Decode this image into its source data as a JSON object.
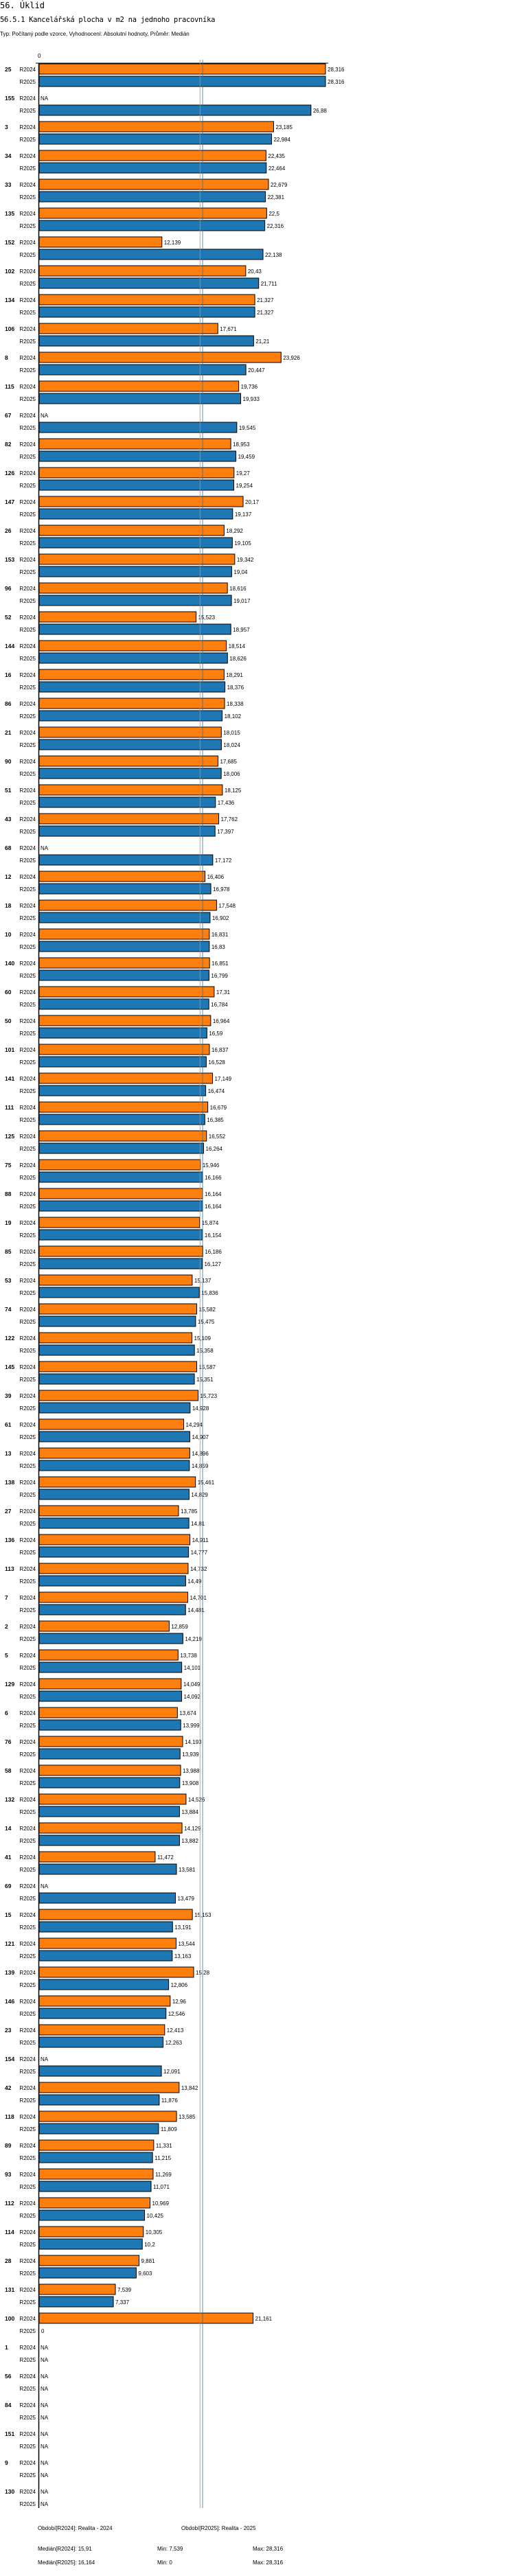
{
  "header": {
    "section": "56. Úklid",
    "title": "56.5.1 Kancelářská plocha v m2 na jednoho pracovníka",
    "subtitle": "Typ: Počítaný podle vzorce, Vyhodnocení: Absolutní hodnoty, Průměr: Medián"
  },
  "footer": {
    "period_r2024": "Období[R2024]: Realita - 2024",
    "period_r2025": "Období[R2025]: Realita - 2025",
    "median_r2024": "Medián[R2024]: 15,91",
    "min_r2024": "Min: 7,539",
    "max_r2024": "Max: 28,316",
    "median_r2025": "Medián[R2025]: 16,164",
    "min_r2025": "Min: 0",
    "max_r2025": "Max: 28,316"
  },
  "chart_data": {
    "type": "bar",
    "orientation": "horizontal",
    "title": "56.5.1 Kancelářská plocha v m2 na jednoho pracovníka",
    "axis_tick_labels": [
      "0"
    ],
    "xlim": [
      0,
      28.316
    ],
    "colors": {
      "R2024": "#ff7f0e",
      "R2025": "#1f77b4"
    },
    "series_names": [
      "R2024",
      "R2025"
    ],
    "medians": {
      "R2024": 15.91,
      "R2025": 16.164
    },
    "groups": [
      {
        "id": "25",
        "R2024": "28,316",
        "R2025": "28,316"
      },
      {
        "id": "155",
        "R2024": "NA",
        "R2025": "26,88"
      },
      {
        "id": "3",
        "R2024": "23,185",
        "R2025": "22,984"
      },
      {
        "id": "34",
        "R2024": "22,435",
        "R2025": "22,464"
      },
      {
        "id": "33",
        "R2024": "22,679",
        "R2025": "22,381"
      },
      {
        "id": "135",
        "R2024": "22,5",
        "R2025": "22,316"
      },
      {
        "id": "152",
        "R2024": "12,139",
        "R2025": "22,138"
      },
      {
        "id": "102",
        "R2024": "20,43",
        "R2025": "21,711"
      },
      {
        "id": "134",
        "R2024": "21,327",
        "R2025": "21,327"
      },
      {
        "id": "106",
        "R2024": "17,671",
        "R2025": "21,21"
      },
      {
        "id": "8",
        "R2024": "23,926",
        "R2025": "20,447"
      },
      {
        "id": "115",
        "R2024": "19,736",
        "R2025": "19,933"
      },
      {
        "id": "67",
        "R2024": "NA",
        "R2025": "19,545"
      },
      {
        "id": "82",
        "R2024": "18,953",
        "R2025": "19,459"
      },
      {
        "id": "126",
        "R2024": "19,27",
        "R2025": "19,254"
      },
      {
        "id": "147",
        "R2024": "20,17",
        "R2025": "19,137"
      },
      {
        "id": "26",
        "R2024": "18,292",
        "R2025": "19,105"
      },
      {
        "id": "153",
        "R2024": "19,342",
        "R2025": "19,04"
      },
      {
        "id": "96",
        "R2024": "18,616",
        "R2025": "19,017"
      },
      {
        "id": "52",
        "R2024": "15,523",
        "R2025": "18,957"
      },
      {
        "id": "144",
        "R2024": "18,514",
        "R2025": "18,626"
      },
      {
        "id": "16",
        "R2024": "18,291",
        "R2025": "18,376"
      },
      {
        "id": "86",
        "R2024": "18,338",
        "R2025": "18,102"
      },
      {
        "id": "21",
        "R2024": "18,015",
        "R2025": "18,024"
      },
      {
        "id": "90",
        "R2024": "17,685",
        "R2025": "18,006"
      },
      {
        "id": "51",
        "R2024": "18,125",
        "R2025": "17,436"
      },
      {
        "id": "43",
        "R2024": "17,762",
        "R2025": "17,397"
      },
      {
        "id": "68",
        "R2024": "NA",
        "R2025": "17,172"
      },
      {
        "id": "12",
        "R2024": "16,406",
        "R2025": "16,978"
      },
      {
        "id": "18",
        "R2024": "17,548",
        "R2025": "16,902"
      },
      {
        "id": "10",
        "R2024": "16,831",
        "R2025": "16,83"
      },
      {
        "id": "140",
        "R2024": "16,851",
        "R2025": "16,799"
      },
      {
        "id": "60",
        "R2024": "17,31",
        "R2025": "16,784"
      },
      {
        "id": "50",
        "R2024": "16,964",
        "R2025": "16,59"
      },
      {
        "id": "101",
        "R2024": "16,837",
        "R2025": "16,528"
      },
      {
        "id": "141",
        "R2024": "17,149",
        "R2025": "16,474"
      },
      {
        "id": "111",
        "R2024": "16,679",
        "R2025": "16,385"
      },
      {
        "id": "125",
        "R2024": "16,552",
        "R2025": "16,264"
      },
      {
        "id": "75",
        "R2024": "15,946",
        "R2025": "16,166"
      },
      {
        "id": "88",
        "R2024": "16,164",
        "R2025": "16,164"
      },
      {
        "id": "19",
        "R2024": "15,874",
        "R2025": "16,154"
      },
      {
        "id": "85",
        "R2024": "16,186",
        "R2025": "16,127"
      },
      {
        "id": "53",
        "R2024": "15,137",
        "R2025": "15,836"
      },
      {
        "id": "74",
        "R2024": "15,582",
        "R2025": "15,475"
      },
      {
        "id": "122",
        "R2024": "15,109",
        "R2025": "15,358"
      },
      {
        "id": "145",
        "R2024": "15,587",
        "R2025": "15,351"
      },
      {
        "id": "39",
        "R2024": "15,723",
        "R2025": "14,928"
      },
      {
        "id": "61",
        "R2024": "14,294",
        "R2025": "14,907"
      },
      {
        "id": "13",
        "R2024": "14,896",
        "R2025": "14,859"
      },
      {
        "id": "138",
        "R2024": "15,461",
        "R2025": "14,829"
      },
      {
        "id": "27",
        "R2024": "13,785",
        "R2025": "14,81"
      },
      {
        "id": "136",
        "R2024": "14,911",
        "R2025": "14,777"
      },
      {
        "id": "113",
        "R2024": "14,732",
        "R2025": "14,49"
      },
      {
        "id": "7",
        "R2024": "14,701",
        "R2025": "14,481"
      },
      {
        "id": "2",
        "R2024": "12,859",
        "R2025": "14,219"
      },
      {
        "id": "5",
        "R2024": "13,738",
        "R2025": "14,101"
      },
      {
        "id": "129",
        "R2024": "14,049",
        "R2025": "14,092"
      },
      {
        "id": "6",
        "R2024": "13,674",
        "R2025": "13,999"
      },
      {
        "id": "76",
        "R2024": "14,193",
        "R2025": "13,939"
      },
      {
        "id": "58",
        "R2024": "13,988",
        "R2025": "13,908"
      },
      {
        "id": "132",
        "R2024": "14,526",
        "R2025": "13,884"
      },
      {
        "id": "14",
        "R2024": "14,129",
        "R2025": "13,882"
      },
      {
        "id": "41",
        "R2024": "11,472",
        "R2025": "13,581"
      },
      {
        "id": "69",
        "R2024": "NA",
        "R2025": "13,479"
      },
      {
        "id": "15",
        "R2024": "15,153",
        "R2025": "13,191"
      },
      {
        "id": "121",
        "R2024": "13,544",
        "R2025": "13,163"
      },
      {
        "id": "139",
        "R2024": "15,28",
        "R2025": "12,806"
      },
      {
        "id": "146",
        "R2024": "12,96",
        "R2025": "12,546"
      },
      {
        "id": "23",
        "R2024": "12,413",
        "R2025": "12,263"
      },
      {
        "id": "154",
        "R2024": "NA",
        "R2025": "12,091"
      },
      {
        "id": "42",
        "R2024": "13,842",
        "R2025": "11,876"
      },
      {
        "id": "118",
        "R2024": "13,585",
        "R2025": "11,809"
      },
      {
        "id": "89",
        "R2024": "11,331",
        "R2025": "11,215"
      },
      {
        "id": "93",
        "R2024": "11,269",
        "R2025": "11,071"
      },
      {
        "id": "112",
        "R2024": "10,969",
        "R2025": "10,425"
      },
      {
        "id": "114",
        "R2024": "10,305",
        "R2025": "10,2"
      },
      {
        "id": "28",
        "R2024": "9,881",
        "R2025": "9,603"
      },
      {
        "id": "131",
        "R2024": "7,539",
        "R2025": "7,337"
      },
      {
        "id": "100",
        "R2024": "21,161",
        "R2025": "0"
      },
      {
        "id": "1",
        "R2024": "NA",
        "R2025": "NA"
      },
      {
        "id": "56",
        "R2024": "NA",
        "R2025": "NA"
      },
      {
        "id": "84",
        "R2024": "NA",
        "R2025": "NA"
      },
      {
        "id": "151",
        "R2024": "NA",
        "R2025": "NA"
      },
      {
        "id": "9",
        "R2024": "NA",
        "R2025": "NA"
      },
      {
        "id": "130",
        "R2024": "NA",
        "R2025": "NA"
      }
    ]
  }
}
